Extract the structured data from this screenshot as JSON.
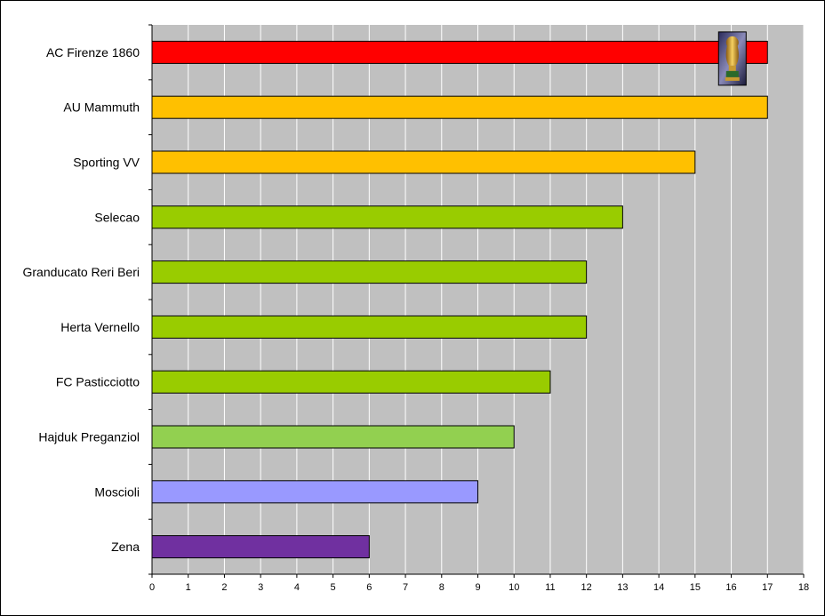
{
  "chart_data": {
    "type": "bar",
    "orientation": "horizontal",
    "categories": [
      "AC Firenze 1860",
      "AU Mammuth",
      "Sporting VV",
      "Selecao",
      "Granducato Reri Beri",
      "Herta Vernello",
      "FC Pasticciotto",
      "Hajduk Preganziol",
      "Moscioli",
      "Zena"
    ],
    "values": [
      17,
      17,
      15,
      13,
      12,
      12,
      11,
      10,
      9,
      6
    ],
    "colors": [
      "#ff0000",
      "#ffc000",
      "#ffc000",
      "#99cc00",
      "#99cc00",
      "#99cc00",
      "#99cc00",
      "#92d050",
      "#9999ff",
      "#7030a0"
    ],
    "xlim": [
      0,
      18
    ],
    "xticks": [
      0,
      1,
      2,
      3,
      4,
      5,
      6,
      7,
      8,
      9,
      10,
      11,
      12,
      13,
      14,
      15,
      16,
      17,
      18
    ],
    "grid": true,
    "plot_background": "#c0c0c0",
    "title": "",
    "xlabel": "",
    "ylabel": "",
    "annotations": [
      {
        "category": "AC Firenze 1860",
        "icon": "trophy-icon"
      }
    ]
  }
}
